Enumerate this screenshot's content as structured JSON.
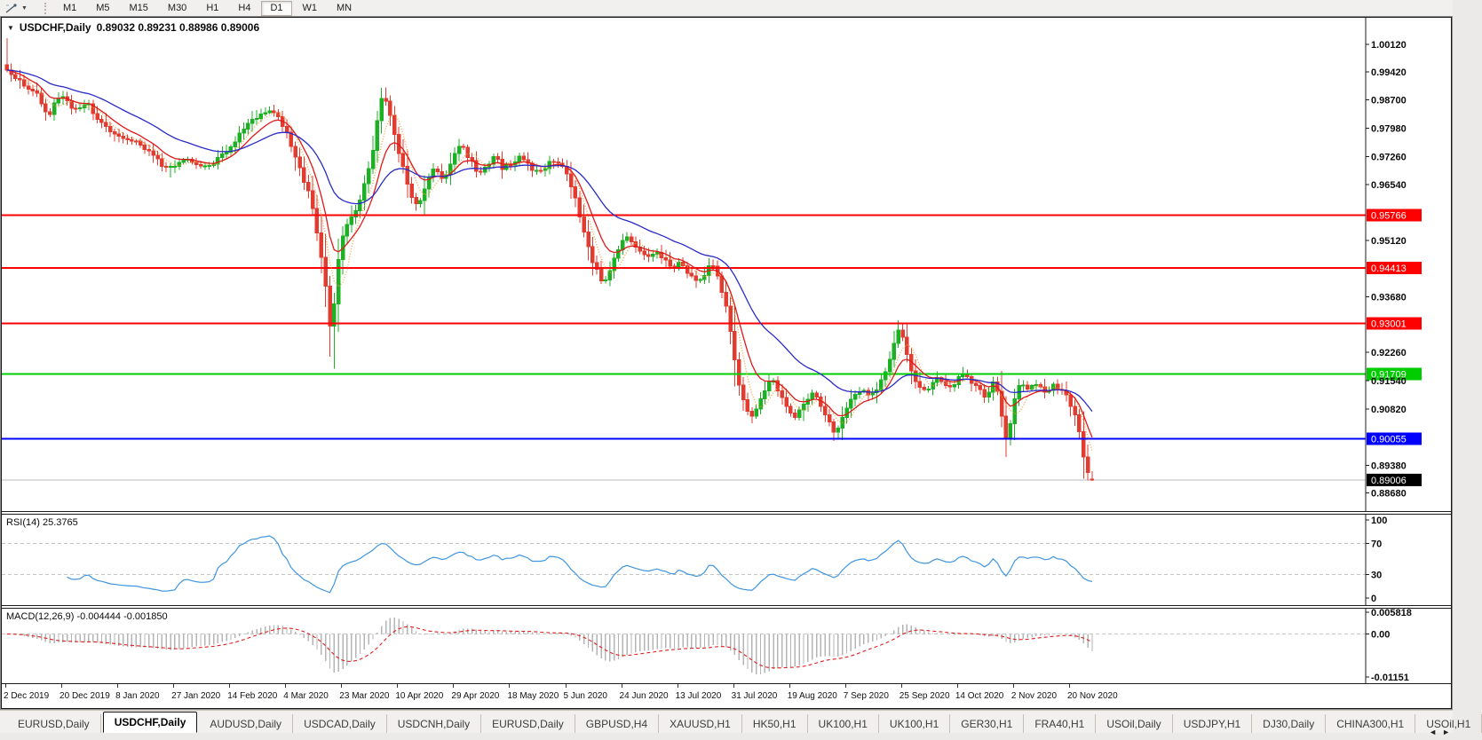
{
  "toolbar": {
    "timeframes": [
      "M1",
      "M5",
      "M15",
      "M30",
      "H1",
      "H4",
      "D1",
      "W1",
      "MN"
    ],
    "active_timeframe": "D1",
    "dropdown_caret": "▼"
  },
  "chart": {
    "window_caret": "▼",
    "title_symbol": "USDCHF,Daily",
    "title_ohlc": "0.89032 0.89231 0.88986 0.89006"
  },
  "chart_data": {
    "type": "candlestick",
    "symbol": "USDCHF",
    "timeframe": "Daily",
    "ohlc_display": {
      "open": "0.89032",
      "high": "0.89231",
      "low": "0.88986",
      "close": "0.89006"
    },
    "num_candles": 253,
    "candles_per_x_label": 13,
    "up_color": "#1cb024",
    "down_color": "#e23b30",
    "price_axis_ticks": [
      {
        "label": "1.00120",
        "value": 1.0012
      },
      {
        "label": "0.99420",
        "value": 0.9942
      },
      {
        "label": "0.98700",
        "value": 0.987
      },
      {
        "label": "0.97980",
        "value": 0.9798
      },
      {
        "label": "0.97260",
        "value": 0.9726
      },
      {
        "label": "0.96540",
        "value": 0.9654
      },
      {
        "label": "0.95120",
        "value": 0.9512
      },
      {
        "label": "0.93680",
        "value": 0.9368
      },
      {
        "label": "0.92260",
        "value": 0.9226
      },
      {
        "label": "0.91540",
        "value": 0.9154
      },
      {
        "label": "0.90820",
        "value": 0.9082
      },
      {
        "label": "0.89380",
        "value": 0.8938
      },
      {
        "label": "0.88680",
        "value": 0.8868
      }
    ],
    "horizontal_lines": [
      {
        "price": 0.95766,
        "label": "0.95766",
        "color": "#ff0000"
      },
      {
        "price": 0.94413,
        "label": "0.94413",
        "color": "#ff0000"
      },
      {
        "price": 0.93001,
        "label": "0.93001",
        "color": "#ff0000"
      },
      {
        "price": 0.91709,
        "label": "0.91709",
        "color": "#00cc00"
      },
      {
        "price": 0.90055,
        "label": "0.90055",
        "color": "#0000ff"
      }
    ],
    "current_price": {
      "value": 0.89006,
      "label": "0.89006",
      "line_color": "#b8b8b8",
      "badge_color": "#000000"
    },
    "x_axis_labels": [
      "2 Dec 2019",
      "20 Dec 2019",
      "8 Jan 2020",
      "27 Jan 2020",
      "14 Feb 2020",
      "4 Mar 2020",
      "23 Mar 2020",
      "10 Apr 2020",
      "29 Apr 2020",
      "18 May 2020",
      "5 Jun 2020",
      "24 Jun 2020",
      "13 Jul 2020",
      "31 Jul 2020",
      "19 Aug 2020",
      "7 Sep 2020",
      "25 Sep 2020",
      "14 Oct 2020",
      "2 Nov 2020",
      "20 Nov 2020"
    ],
    "price_keypoints": [
      [
        0,
        0.996
      ],
      [
        2,
        0.993
      ],
      [
        5,
        0.9906
      ],
      [
        8,
        0.9882
      ],
      [
        10,
        0.9826
      ],
      [
        12,
        0.9872
      ],
      [
        14,
        0.9886
      ],
      [
        16,
        0.9846
      ],
      [
        19,
        0.9866
      ],
      [
        21,
        0.9826
      ],
      [
        24,
        0.9794
      ],
      [
        26,
        0.978
      ],
      [
        28,
        0.9768
      ],
      [
        31,
        0.976
      ],
      [
        33,
        0.9748
      ],
      [
        35,
        0.9722
      ],
      [
        38,
        0.969
      ],
      [
        40,
        0.9706
      ],
      [
        43,
        0.972
      ],
      [
        46,
        0.9694
      ],
      [
        49,
        0.9712
      ],
      [
        52,
        0.9748
      ],
      [
        55,
        0.9788
      ],
      [
        58,
        0.9822
      ],
      [
        61,
        0.9846
      ],
      [
        63,
        0.9838
      ],
      [
        65,
        0.98
      ],
      [
        67,
        0.9742
      ],
      [
        69,
        0.9682
      ],
      [
        71,
        0.963
      ],
      [
        72,
        0.9576
      ],
      [
        73,
        0.9502
      ],
      [
        74,
        0.944
      ],
      [
        75,
        0.936
      ],
      [
        76,
        0.924
      ],
      [
        77,
        0.942
      ],
      [
        78,
        0.95
      ],
      [
        80,
        0.9558
      ],
      [
        82,
        0.9602
      ],
      [
        84,
        0.9662
      ],
      [
        86,
        0.9762
      ],
      [
        87,
        0.9852
      ],
      [
        88,
        0.9888
      ],
      [
        90,
        0.9808
      ],
      [
        92,
        0.9718
      ],
      [
        94,
        0.9636
      ],
      [
        96,
        0.9592
      ],
      [
        98,
        0.9658
      ],
      [
        100,
        0.97
      ],
      [
        102,
        0.9662
      ],
      [
        104,
        0.9722
      ],
      [
        106,
        0.9756
      ],
      [
        108,
        0.972
      ],
      [
        110,
        0.9682
      ],
      [
        112,
        0.9706
      ],
      [
        114,
        0.9726
      ],
      [
        116,
        0.9692
      ],
      [
        118,
        0.9712
      ],
      [
        120,
        0.9726
      ],
      [
        122,
        0.9702
      ],
      [
        124,
        0.9682
      ],
      [
        126,
        0.9706
      ],
      [
        128,
        0.9718
      ],
      [
        130,
        0.9698
      ],
      [
        132,
        0.9638
      ],
      [
        134,
        0.956
      ],
      [
        136,
        0.9478
      ],
      [
        138,
        0.942
      ],
      [
        139,
        0.9396
      ],
      [
        141,
        0.9452
      ],
      [
        143,
        0.95
      ],
      [
        145,
        0.9522
      ],
      [
        147,
        0.9492
      ],
      [
        149,
        0.9466
      ],
      [
        151,
        0.9486
      ],
      [
        153,
        0.9462
      ],
      [
        155,
        0.944
      ],
      [
        157,
        0.9456
      ],
      [
        159,
        0.9426
      ],
      [
        161,
        0.9402
      ],
      [
        163,
        0.9432
      ],
      [
        164,
        0.9456
      ],
      [
        166,
        0.941
      ],
      [
        168,
        0.933
      ],
      [
        169,
        0.9252
      ],
      [
        170,
        0.9182
      ],
      [
        171,
        0.9122
      ],
      [
        172,
        0.9086
      ],
      [
        174,
        0.9062
      ],
      [
        176,
        0.9122
      ],
      [
        178,
        0.9162
      ],
      [
        180,
        0.9122
      ],
      [
        182,
        0.9082
      ],
      [
        184,
        0.9062
      ],
      [
        186,
        0.9102
      ],
      [
        188,
        0.9126
      ],
      [
        190,
        0.9082
      ],
      [
        192,
        0.9042
      ],
      [
        193,
        0.9016
      ],
      [
        195,
        0.9072
      ],
      [
        197,
        0.9112
      ],
      [
        199,
        0.9132
      ],
      [
        201,
        0.9106
      ],
      [
        203,
        0.9142
      ],
      [
        205,
        0.9182
      ],
      [
        206,
        0.9222
      ],
      [
        207,
        0.9266
      ],
      [
        208,
        0.9292
      ],
      [
        209,
        0.9258
      ],
      [
        210,
        0.9198
      ],
      [
        211,
        0.9156
      ],
      [
        213,
        0.9126
      ],
      [
        215,
        0.9142
      ],
      [
        217,
        0.9162
      ],
      [
        219,
        0.9136
      ],
      [
        221,
        0.9152
      ],
      [
        223,
        0.9172
      ],
      [
        225,
        0.9146
      ],
      [
        227,
        0.912
      ],
      [
        228,
        0.9096
      ],
      [
        229,
        0.9132
      ],
      [
        230,
        0.9162
      ],
      [
        231,
        0.9102
      ],
      [
        232,
        0.9032
      ],
      [
        233,
        0.8998
      ],
      [
        234,
        0.9072
      ],
      [
        235,
        0.9122
      ],
      [
        236,
        0.9152
      ],
      [
        238,
        0.9132
      ],
      [
        240,
        0.9146
      ],
      [
        242,
        0.9126
      ],
      [
        244,
        0.9142
      ],
      [
        246,
        0.9122
      ],
      [
        247,
        0.9106
      ],
      [
        248,
        0.9086
      ],
      [
        249,
        0.9052
      ],
      [
        250,
        0.9002
      ],
      [
        251,
        0.8938
      ],
      [
        252,
        0.8902
      ]
    ],
    "wick_low_overrides": {
      "76": 0.9184,
      "38": 0.9672,
      "193": 0.9003,
      "233": 0.8989
    },
    "wick_high_overrides": {
      "0": 1.0028,
      "88": 0.9902,
      "208": 0.93
    },
    "last_candle": {
      "o": 0.89032,
      "h": 0.89231,
      "l": 0.88986,
      "c": 0.89006
    },
    "moving_averages": [
      {
        "name": "fast-ma",
        "type": "sma",
        "period": 5,
        "color": "#f2a33c",
        "dash": "1,2"
      },
      {
        "name": "mid-ma",
        "type": "ema",
        "period": 9,
        "color": "#e01919",
        "dash": ""
      },
      {
        "name": "slow-ma",
        "type": "ema",
        "period": 26,
        "color": "#2a2ac8",
        "dash": ""
      }
    ],
    "rsi": {
      "label": "RSI(14) 25.3765",
      "period": 14,
      "last_value": 25.3765,
      "line_color": "#3f95e0",
      "level_lines": [
        70,
        30
      ],
      "axis_ticks": [
        {
          "label": "100",
          "value": 100
        },
        {
          "label": "70",
          "value": 70
        },
        {
          "label": "30",
          "value": 30
        },
        {
          "label": "0",
          "value": 0
        }
      ]
    },
    "macd": {
      "label": "MACD(12,26,9) -0.004444 -0.001850",
      "fast": 12,
      "slow": 26,
      "signal": 9,
      "main_value": -0.004444,
      "signal_value": -0.00185,
      "hist_color": "#b4b4b4",
      "signal_color": "#e02020",
      "axis_ticks": [
        {
          "label": "0.005818",
          "value": 0.005818
        },
        {
          "label": "0.00",
          "value": 0
        },
        {
          "label": "-0.01151",
          "value": -0.01151
        }
      ]
    }
  },
  "tabs": {
    "items": [
      {
        "label": "EURUSD,Daily",
        "active": false
      },
      {
        "label": "USDCHF,Daily",
        "active": true
      },
      {
        "label": "AUDUSD,Daily",
        "active": false
      },
      {
        "label": "USDCAD,Daily",
        "active": false
      },
      {
        "label": "USDCNH,Daily",
        "active": false
      },
      {
        "label": "EURUSD,Daily",
        "active": false
      },
      {
        "label": "GBPUSD,H4",
        "active": false
      },
      {
        "label": "XAUUSD,H1",
        "active": false
      },
      {
        "label": "HK50,H1",
        "active": false
      },
      {
        "label": "UK100,H1",
        "active": false
      },
      {
        "label": "UK100,H1",
        "active": false
      },
      {
        "label": "GER30,H1",
        "active": false
      },
      {
        "label": "FRA40,H1",
        "active": false
      },
      {
        "label": "USOil,Daily",
        "active": false
      },
      {
        "label": "USDJPY,H1",
        "active": false
      },
      {
        "label": "DJ30,Daily",
        "active": false
      },
      {
        "label": "CHINA300,H1",
        "active": false
      },
      {
        "label": "USOil,H1",
        "active": false
      }
    ],
    "nav_left": "◄",
    "nav_right": "►"
  }
}
